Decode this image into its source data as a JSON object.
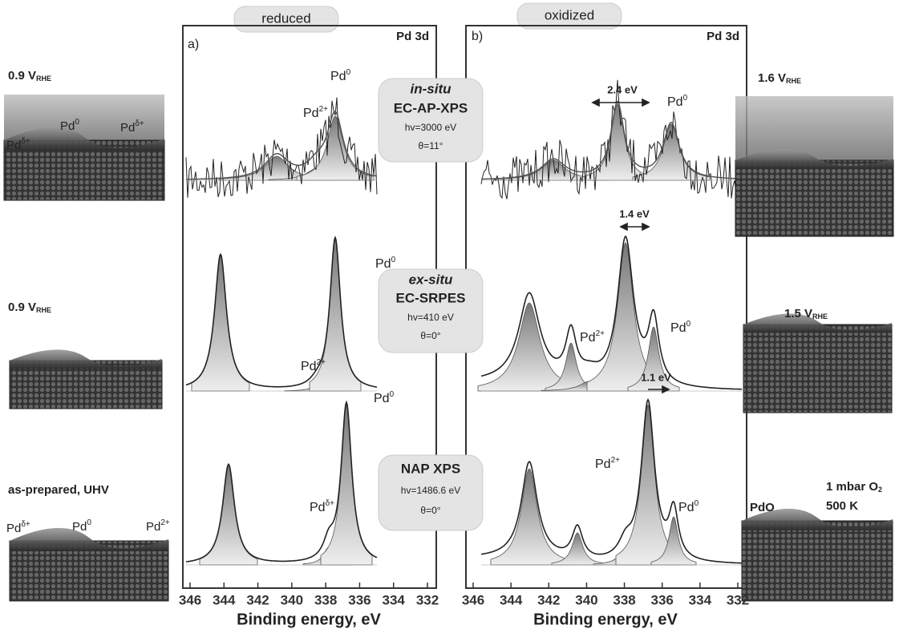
{
  "panels": [
    {
      "label": "a)",
      "header": "reduced",
      "region": "Pd 3d",
      "ticks": [
        346,
        344,
        342,
        340,
        338,
        336,
        334,
        332
      ],
      "axis_title": "Binding energy, eV"
    },
    {
      "label": "b)",
      "header": "oxidized",
      "region": "Pd 3d",
      "ticks": [
        346,
        344,
        342,
        340,
        338,
        336,
        334,
        332
      ],
      "axis_title": "Binding energy, eV"
    }
  ],
  "methods": [
    {
      "title": "in-situ",
      "name": "EC-AP-XPS",
      "energy": "hv=3000 eV",
      "angle": "θ=11°"
    },
    {
      "title": "ex-situ",
      "name": "EC-SRPES",
      "energy": "hv=410 eV",
      "angle": "θ=0°"
    },
    {
      "name": "NAP XPS",
      "energy": "hv=1486.6 eV",
      "angle": "θ=0°"
    }
  ],
  "peak_labels": [
    {
      "base": "Pd",
      "sup": "0"
    },
    {
      "base": "Pd",
      "sup": "2+"
    },
    {
      "base": "Pd",
      "sup": "0"
    },
    {
      "base": "Pd",
      "sup": "0"
    },
    {
      "base": "Pd",
      "sup": "2+"
    },
    {
      "base": "Pd",
      "sup": "2+"
    },
    {
      "base": "Pd",
      "sup": "0"
    },
    {
      "base": "Pd",
      "sup": "0"
    },
    {
      "base": "Pd",
      "sup": "δ+"
    },
    {
      "base": "Pd",
      "sup": "2+"
    },
    {
      "base": "Pd",
      "sup": "0"
    }
  ],
  "shifts": [
    "2.4 eV",
    "1.4 eV",
    "1.1 eV"
  ],
  "left_conditions": [
    {
      "main": "0.9 V",
      "sub": "RHE",
      "model_labels": [
        {
          "base": "Pd",
          "sup": "δ+"
        },
        {
          "base": "Pd",
          "sup": "0"
        },
        {
          "base": "Pd",
          "sup": "δ+"
        }
      ]
    },
    {
      "main": "0.9 V",
      "sub": "RHE"
    },
    {
      "main": "as-prepared, UHV",
      "model_labels": [
        {
          "base": "Pd",
          "sup": "δ+"
        },
        {
          "base": "Pd",
          "sup": "0"
        },
        {
          "base": "Pd",
          "sup": "2+"
        }
      ]
    }
  ],
  "right_conditions": [
    {
      "main": "1.6 V",
      "sub": "RHE"
    },
    {
      "main": "1.5 V",
      "sub": "RHE"
    },
    {
      "main": "PdO",
      "extra": [
        "1 mbar O",
        "500 K"
      ],
      "extra_sub": "2"
    }
  ]
}
